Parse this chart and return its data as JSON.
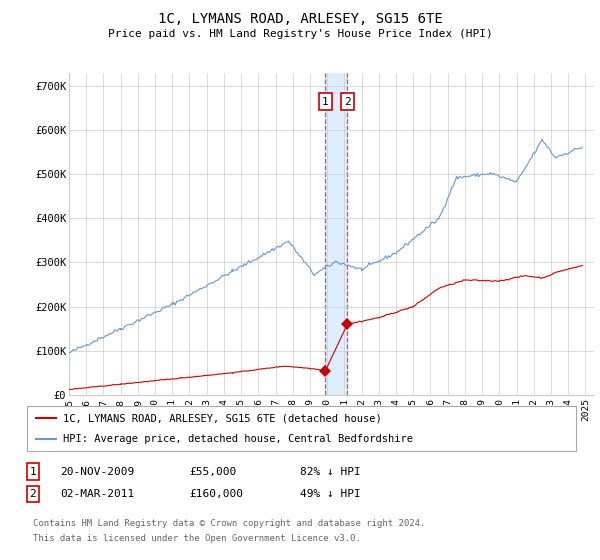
{
  "title": "1C, LYMANS ROAD, ARLESEY, SG15 6TE",
  "subtitle": "Price paid vs. HM Land Registry's House Price Index (HPI)",
  "ylabel_ticks": [
    "£0",
    "£100K",
    "£200K",
    "£300K",
    "£400K",
    "£500K",
    "£600K",
    "£700K"
  ],
  "ytick_values": [
    0,
    100000,
    200000,
    300000,
    400000,
    500000,
    600000,
    700000
  ],
  "ylim": [
    0,
    730000
  ],
  "xlim_start": 1995.0,
  "xlim_end": 2025.5,
  "hpi_color": "#6699cc",
  "price_color": "#cc0000",
  "transaction1_date": 2009.9,
  "transaction1_price": 55000,
  "transaction2_date": 2011.17,
  "transaction2_price": 160000,
  "legend1": "1C, LYMANS ROAD, ARLESEY, SG15 6TE (detached house)",
  "legend2": "HPI: Average price, detached house, Central Bedfordshire",
  "footnote1": "Contains HM Land Registry data © Crown copyright and database right 2024.",
  "footnote2": "This data is licensed under the Open Government Licence v3.0.",
  "table_row1_num": "1",
  "table_row1_date": "20-NOV-2009",
  "table_row1_price": "£55,000",
  "table_row1_hpi": "82% ↓ HPI",
  "table_row2_num": "2",
  "table_row2_date": "02-MAR-2011",
  "table_row2_price": "£160,000",
  "table_row2_hpi": "49% ↓ HPI",
  "background_color": "#ffffff",
  "grid_color": "#cccccc",
  "span_color": "#ddeeff",
  "vline_color": "#cc4444"
}
